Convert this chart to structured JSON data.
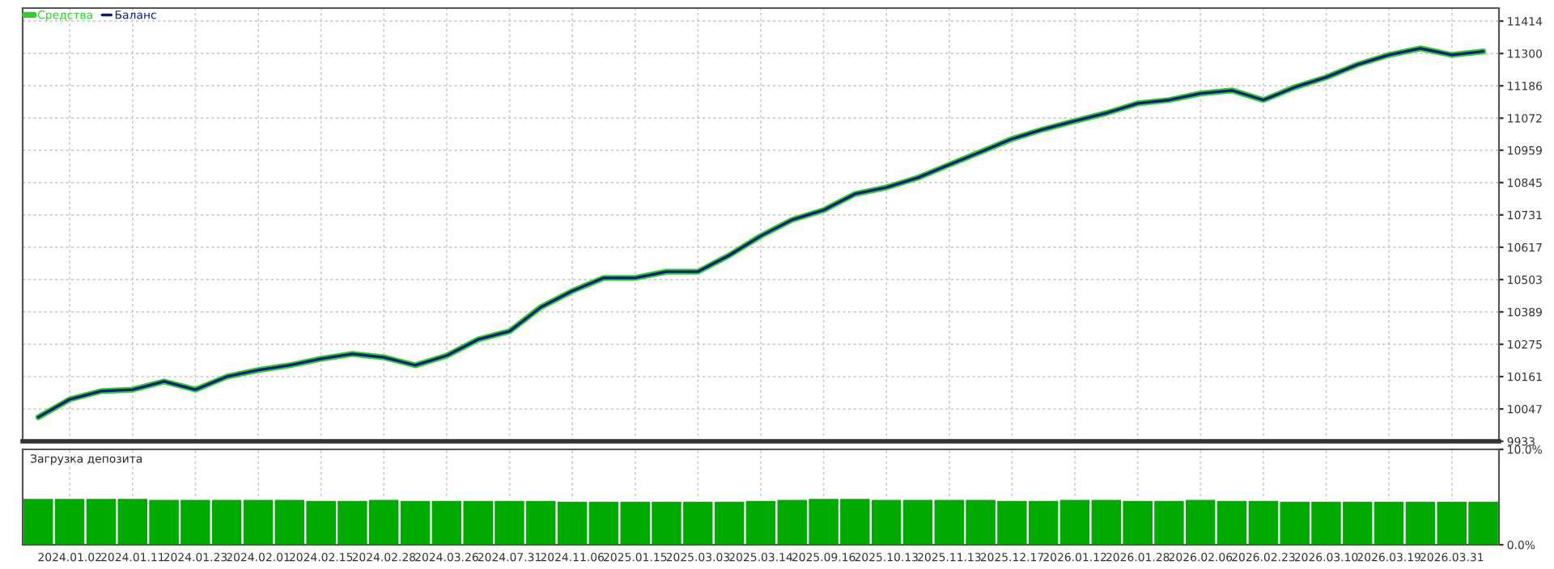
{
  "chart_data": [
    {
      "type": "line",
      "legend": "top left",
      "grid": true,
      "tick_labels": "y",
      "categories": [
        null,
        "2024.01.02",
        null,
        "2024.01.11",
        null,
        "2024.01.23",
        null,
        "2024.02.01",
        null,
        "2024.02.15",
        null,
        "2024.02.28",
        null,
        "2024.03.26",
        null,
        "2024.07.31",
        null,
        "2024.11.06",
        null,
        "2025.01.15",
        null,
        "2025.03.03",
        null,
        "2025.03.14",
        null,
        "2025.09.16",
        null,
        "2025.10.13",
        null,
        "2025.11.13",
        null,
        "2025.12.17",
        null,
        "2026.01.12",
        null,
        "2026.01.28",
        null,
        "2026.02.06",
        null,
        "2026.02.23",
        null,
        "2026.03.10",
        null,
        "2026.03.19",
        null,
        "2026.03.31",
        null
      ],
      "series": [
        {
          "name": "Средства",
          "color": "#33cc33",
          "values": [
            10018,
            10081,
            10110,
            10115,
            10144,
            10115,
            10161,
            10184,
            10201,
            10224,
            10241,
            10229,
            10201,
            10235,
            10292,
            10321,
            10406,
            10463,
            10509,
            10509,
            10531,
            10531,
            10589,
            10657,
            10714,
            10748,
            10805,
            10828,
            10862,
            10908,
            10953,
            10999,
            11033,
            11062,
            11090,
            11124,
            11136,
            11159,
            11170,
            11136,
            11181,
            11216,
            11261,
            11295,
            11318,
            11295,
            11307
          ]
        },
        {
          "name": "Баланс",
          "color": "#0a1f7a",
          "values": [
            10018,
            10081,
            10110,
            10115,
            10144,
            10115,
            10161,
            10184,
            10201,
            10224,
            10241,
            10229,
            10201,
            10235,
            10292,
            10321,
            10406,
            10463,
            10509,
            10509,
            10531,
            10531,
            10589,
            10657,
            10714,
            10748,
            10805,
            10828,
            10862,
            10908,
            10953,
            10999,
            11033,
            11062,
            11090,
            11124,
            11136,
            11159,
            11170,
            11136,
            11181,
            11216,
            11261,
            11295,
            11318,
            11295,
            11307
          ]
        }
      ],
      "ylim": [
        9933,
        11460
      ],
      "yticks": [
        9933,
        10047,
        10161,
        10275,
        10389,
        10503,
        10617,
        10731,
        10845,
        10959,
        11072,
        11186,
        11300,
        11414
      ]
    },
    {
      "type": "bar",
      "title": "Загрузка депозита",
      "grid": true,
      "color": "#00aa00",
      "categories": [
        null,
        "2024.01.02",
        null,
        "2024.01.11",
        null,
        "2024.01.23",
        null,
        "2024.02.01",
        null,
        "2024.02.15",
        null,
        "2024.02.28",
        null,
        "2024.03.26",
        null,
        "2024.07.31",
        null,
        "2024.11.06",
        null,
        "2025.01.15",
        null,
        "2025.03.03",
        null,
        "2025.03.14",
        null,
        "2025.09.16",
        null,
        "2025.10.13",
        null,
        "2025.11.13",
        null,
        "2025.12.17",
        null,
        "2026.01.12",
        null,
        "2026.01.28",
        null,
        "2026.02.06",
        null,
        "2026.02.23",
        null,
        "2026.03.10",
        null,
        "2026.03.19",
        null,
        "2026.03.31",
        null
      ],
      "values": [
        4.9,
        4.9,
        4.9,
        4.9,
        4.8,
        4.8,
        4.8,
        4.8,
        4.8,
        4.7,
        4.7,
        4.8,
        4.7,
        4.7,
        4.7,
        4.7,
        4.7,
        4.6,
        4.6,
        4.6,
        4.6,
        4.6,
        4.6,
        4.7,
        4.8,
        4.9,
        4.9,
        4.8,
        4.8,
        4.8,
        4.8,
        4.7,
        4.7,
        4.8,
        4.8,
        4.7,
        4.7,
        4.8,
        4.7,
        4.7,
        4.6,
        4.6,
        4.6,
        4.6,
        4.6,
        4.6,
        4.6
      ],
      "ylim": [
        0,
        10
      ],
      "yticks": [
        {
          "value": 0,
          "label": "0.0%"
        },
        {
          "value": 10,
          "label": "10.0%"
        }
      ]
    }
  ]
}
